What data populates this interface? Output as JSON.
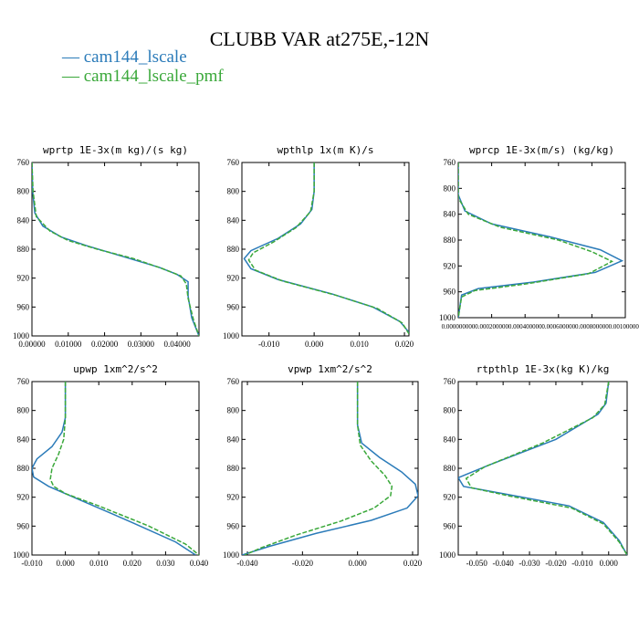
{
  "figure": {
    "title": "CLUBB VAR at275E,-12N",
    "legend": [
      {
        "label": "— cam144_lscale",
        "color": "#2b7bb9"
      },
      {
        "label": "— cam144_lscale_pmf",
        "color": "#3aa83a"
      }
    ]
  },
  "chart_data": [
    {
      "type": "line",
      "title": "wprtp  1E-3x(m kg)/(s kg)",
      "xlim": [
        0.0,
        0.046
      ],
      "ylim": [
        1000,
        760
      ],
      "x_ticks": [
        0.0,
        0.01,
        0.02,
        0.03,
        0.04
      ],
      "x_tick_labels": [
        "0.00000",
        "0.01000",
        "0.02000",
        "0.03000",
        "0.04000"
      ],
      "y_ticks": [
        760,
        800,
        840,
        880,
        920,
        960,
        1000
      ],
      "series": [
        {
          "color": "#2b7bb9",
          "dashed": false,
          "x": [
            0.0,
            0.0002,
            0.0008,
            0.003,
            0.008,
            0.015,
            0.025,
            0.035,
            0.04,
            0.043,
            0.043,
            0.044,
            0.046
          ],
          "y": [
            760,
            800,
            830,
            848,
            863,
            875,
            890,
            905,
            915,
            925,
            945,
            975,
            1000
          ]
        },
        {
          "color": "#3aa83a",
          "dashed": true,
          "x": [
            0.0,
            0.0003,
            0.0012,
            0.005,
            0.01,
            0.018,
            0.028,
            0.036,
            0.041,
            0.0425,
            0.043,
            0.0445,
            0.046
          ],
          "y": [
            760,
            800,
            835,
            855,
            868,
            880,
            893,
            907,
            917,
            928,
            948,
            978,
            1000
          ]
        }
      ]
    },
    {
      "type": "line",
      "title": "wpthlp  1x(m K)/s",
      "xlim": [
        -0.016,
        0.021
      ],
      "ylim": [
        1000,
        760
      ],
      "x_ticks": [
        -0.01,
        0.0,
        0.01,
        0.02
      ],
      "x_tick_labels": [
        "-0.010",
        "0.000",
        "0.010",
        "0.020"
      ],
      "y_ticks": [
        760,
        800,
        840,
        880,
        920,
        960,
        1000
      ],
      "series": [
        {
          "color": "#2b7bb9",
          "dashed": false,
          "x": [
            0.0,
            0.0,
            -0.0005,
            -0.003,
            -0.008,
            -0.014,
            -0.0155,
            -0.014,
            -0.008,
            0.004,
            0.013,
            0.019,
            0.021
          ],
          "y": [
            760,
            800,
            825,
            845,
            865,
            882,
            893,
            907,
            922,
            942,
            960,
            980,
            995
          ]
        },
        {
          "color": "#3aa83a",
          "dashed": true,
          "x": [
            0.0,
            0.0,
            -0.0008,
            -0.004,
            -0.009,
            -0.0135,
            -0.0145,
            -0.013,
            -0.007,
            0.005,
            0.014,
            0.0195,
            0.021
          ],
          "y": [
            760,
            800,
            828,
            850,
            870,
            885,
            895,
            909,
            924,
            944,
            962,
            982,
            997
          ]
        }
      ]
    },
    {
      "type": "line",
      "title": "wprcp  1E-3x(m/s) (kg/kg)",
      "xlim": [
        0.0,
        0.001
      ],
      "ylim": [
        1000,
        760
      ],
      "x_ticks": [
        0.0,
        0.0002,
        0.0004,
        0.0006,
        0.0008,
        0.001
      ],
      "x_tick_labels": [
        "0.000000000",
        "0.000200000",
        "0.000400000",
        "0.000600000",
        "0.000800000",
        "0.001000000"
      ],
      "y_ticks": [
        760,
        800,
        840,
        880,
        920,
        960,
        1000
      ],
      "series": [
        {
          "color": "#2b7bb9",
          "dashed": false,
          "x": [
            0.0,
            0.0,
            4e-05,
            0.0002,
            0.00055,
            0.00085,
            0.00098,
            0.00082,
            0.00045,
            0.00012,
            2e-05,
            0.0
          ],
          "y": [
            760,
            810,
            835,
            855,
            875,
            895,
            912,
            930,
            945,
            955,
            965,
            1000
          ]
        },
        {
          "color": "#3aa83a",
          "dashed": true,
          "x": [
            0.0,
            0.0,
            6e-05,
            0.00025,
            0.0006,
            0.0008,
            0.00092,
            0.00078,
            0.0004,
            0.0001,
            2e-05,
            0.0
          ],
          "y": [
            760,
            815,
            840,
            860,
            880,
            898,
            913,
            932,
            948,
            958,
            968,
            1000
          ]
        }
      ]
    },
    {
      "type": "line",
      "title": "upwp  1xm^2/s^2",
      "xlim": [
        -0.01,
        0.04
      ],
      "ylim": [
        1000,
        760
      ],
      "x_ticks": [
        -0.01,
        0.0,
        0.01,
        0.02,
        0.03,
        0.04
      ],
      "x_tick_labels": [
        "-0.010",
        "0.000",
        "0.010",
        "0.020",
        "0.030",
        "0.040"
      ],
      "y_ticks": [
        760,
        800,
        840,
        880,
        920,
        960,
        1000
      ],
      "series": [
        {
          "color": "#2b7bb9",
          "dashed": false,
          "x": [
            0.0,
            0.0,
            -0.001,
            -0.004,
            -0.0085,
            -0.01,
            -0.0095,
            -0.005,
            0.005,
            0.02,
            0.033,
            0.039
          ],
          "y": [
            760,
            810,
            830,
            850,
            867,
            880,
            892,
            905,
            925,
            955,
            982,
            1000
          ]
        },
        {
          "color": "#3aa83a",
          "dashed": true,
          "x": [
            0.0,
            0.0,
            -0.0005,
            -0.002,
            -0.004,
            -0.0045,
            -0.0035,
            0.0,
            0.01,
            0.025,
            0.036,
            0.04
          ],
          "y": [
            760,
            810,
            840,
            860,
            880,
            895,
            905,
            915,
            932,
            960,
            985,
            1000
          ]
        }
      ]
    },
    {
      "type": "line",
      "title": "vpwp  1xm^2/s^2",
      "xlim": [
        -0.042,
        0.022
      ],
      "ylim": [
        1000,
        760
      ],
      "x_ticks": [
        -0.04,
        -0.02,
        0.0,
        0.02
      ],
      "x_tick_labels": [
        "-0.040",
        "-0.020",
        "0.000",
        "0.020"
      ],
      "y_ticks": [
        760,
        800,
        840,
        880,
        920,
        960,
        1000
      ],
      "series": [
        {
          "color": "#2b7bb9",
          "dashed": false,
          "x": [
            0.0,
            0.0,
            0.0015,
            0.008,
            0.016,
            0.021,
            0.022,
            0.018,
            0.005,
            -0.015,
            -0.032,
            -0.042
          ],
          "y": [
            760,
            820,
            845,
            865,
            885,
            902,
            918,
            935,
            952,
            970,
            988,
            1000
          ]
        },
        {
          "color": "#3aa83a",
          "dashed": true,
          "x": [
            0.0,
            0.0,
            0.001,
            0.005,
            0.01,
            0.0125,
            0.012,
            0.006,
            -0.006,
            -0.022,
            -0.035,
            -0.041
          ],
          "y": [
            760,
            820,
            848,
            870,
            890,
            905,
            918,
            935,
            953,
            972,
            990,
            1000
          ]
        }
      ]
    },
    {
      "type": "line",
      "title": "rtpthlp  1E-3x(kg K)/kg",
      "xlim": [
        -0.057,
        0.007
      ],
      "ylim": [
        1000,
        760
      ],
      "x_ticks": [
        -0.05,
        -0.04,
        -0.03,
        -0.02,
        -0.01,
        0.0
      ],
      "x_tick_labels": [
        "-0.050",
        "-0.040",
        "-0.030",
        "-0.020",
        "-0.010",
        "0.000"
      ],
      "y_ticks": [
        760,
        800,
        840,
        880,
        920,
        960,
        1000
      ],
      "series": [
        {
          "color": "#2b7bb9",
          "dashed": false,
          "x": [
            0.0,
            -0.001,
            -0.004,
            -0.02,
            -0.045,
            -0.057,
            -0.055,
            -0.04,
            -0.015,
            -0.002,
            0.004,
            0.007
          ],
          "y": [
            760,
            790,
            805,
            840,
            875,
            893,
            905,
            915,
            932,
            955,
            980,
            1000
          ]
        },
        {
          "color": "#3aa83a",
          "dashed": true,
          "x": [
            0.0,
            -0.0015,
            -0.006,
            -0.025,
            -0.047,
            -0.054,
            -0.052,
            -0.038,
            -0.014,
            -0.002,
            0.004,
            0.007
          ],
          "y": [
            760,
            792,
            810,
            845,
            878,
            894,
            907,
            918,
            935,
            957,
            982,
            1000
          ]
        }
      ]
    }
  ]
}
